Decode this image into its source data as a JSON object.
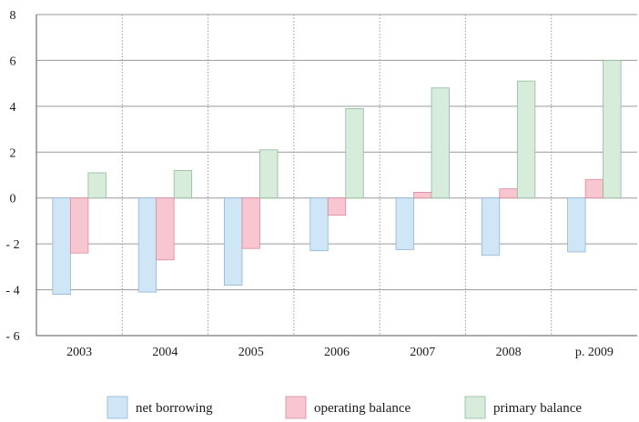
{
  "chart_data": {
    "type": "bar",
    "categories": [
      "2003",
      "2004",
      "2005",
      "2006",
      "2007",
      "2008",
      "p. 2009"
    ],
    "series": [
      {
        "name": "net borrowing",
        "values": [
          -4.2,
          -4.1,
          -3.8,
          -2.3,
          -2.25,
          -2.5,
          -2.35
        ],
        "color": "#cfe6f7",
        "stroke": "#8fb4d6"
      },
      {
        "name": "operating balance",
        "values": [
          -2.4,
          -2.7,
          -2.2,
          -0.75,
          0.25,
          0.4,
          0.8
        ],
        "color": "#f7c6d0",
        "stroke": "#d98a9c"
      },
      {
        "name": "primary balance",
        "values": [
          1.1,
          1.2,
          2.1,
          3.9,
          4.8,
          5.1,
          6.0
        ],
        "color": "#d8ecdc",
        "stroke": "#8fb89a"
      }
    ],
    "y_ticks": [
      "8",
      "6",
      "4",
      "2",
      "0",
      "- 2",
      "- 4",
      "- 6"
    ],
    "y_tick_values": [
      8,
      6,
      4,
      2,
      0,
      -2,
      -4,
      -6
    ],
    "ylim": [
      -6,
      8
    ],
    "grid": true,
    "legend_position": "bottom"
  }
}
